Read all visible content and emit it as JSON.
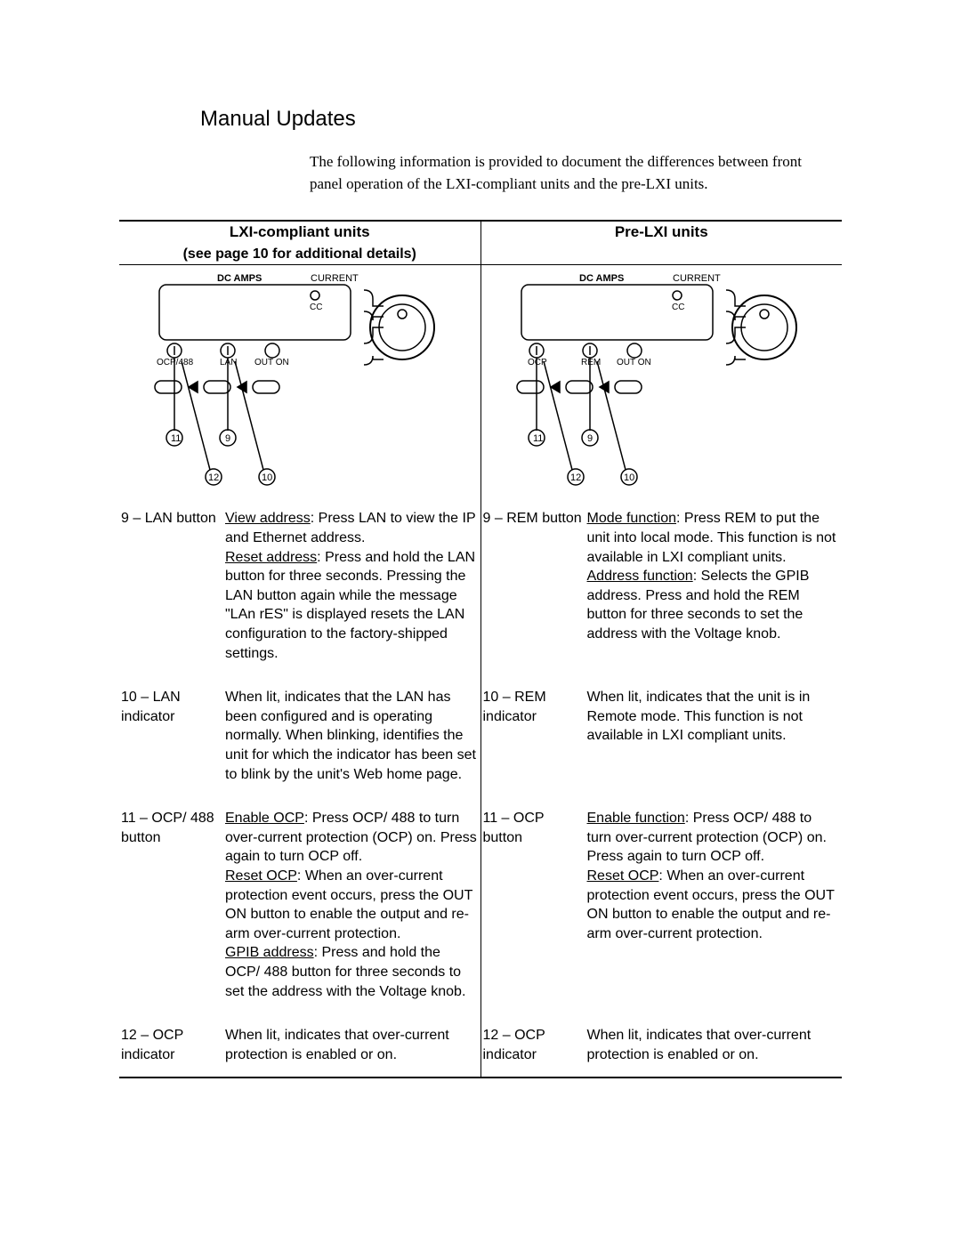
{
  "title": "Manual Updates",
  "intro": "The following information is provided to document the differences between front panel operation of the LXI-compliant units and the pre-LXI units.",
  "columns": {
    "left": {
      "header": "LXI-compliant units",
      "subheader": "(see page 10 for additional details)"
    },
    "right": {
      "header": "Pre-LXI units",
      "subheader": ""
    }
  },
  "diagram": {
    "dc_amps": "DC AMPS",
    "current": "CURRENT",
    "cc": "CC",
    "out_on": "OUT ON",
    "left_labels": {
      "a": "OCP/488",
      "b": "LAN"
    },
    "right_labels": {
      "a": "OCP",
      "b": "REM"
    },
    "callouts": [
      "9",
      "10",
      "11",
      "12"
    ]
  },
  "rows": [
    {
      "left": {
        "label": "9 – LAN button",
        "desc_html": "<span class=\"ul\">View address</span>: Press LAN to view the IP and Ethernet address.<br><span class=\"ul\">Reset address</span>: Press and hold the LAN button for three seconds. Pressing the LAN button again while the message \"LAn rES\" is displayed resets the LAN configuration to the factory-shipped settings."
      },
      "right": {
        "label": "9 – REM button",
        "desc_html": "<span class=\"ul\">Mode function</span>: Press REM to put the unit into local mode. This function is not available in LXI compliant units.<br><span class=\"ul\">Address function</span>: Selects the GPIB address. Press and hold the REM button for three seconds to set the address with the Voltage knob."
      }
    },
    {
      "left": {
        "label": "10 – LAN indicator",
        "desc_html": "When lit, indicates that the LAN has been configured and is operating normally. When blinking, identifies the unit for which the indicator has been set to blink by the unit's Web home page."
      },
      "right": {
        "label": "10 – REM indicator",
        "desc_html": "When lit, indicates that the unit is in Remote mode. This function is not available in LXI compliant units."
      }
    },
    {
      "left": {
        "label": "11 – OCP/ 488 button",
        "desc_html": "<span class=\"ul\">Enable OCP</span>: Press OCP/ 488 to turn over-current protection (OCP) on. Press again to turn OCP off.<br><span class=\"ul\">Reset OCP</span>: When an over-current protection event occurs, press the OUT ON button to enable the output and re-arm over-current protection.<br><span class=\"ul\">GPIB address</span>: Press and hold the OCP/ 488 button for three seconds to set the address with the Voltage knob."
      },
      "right": {
        "label": "11 – OCP button",
        "desc_html": "<span class=\"ul\">Enable function</span>: Press OCP/ 488 to turn over-current protection (OCP) on. Press again to turn OCP off.<br><span class=\"ul\">Reset OCP</span>: When an over-current protection event occurs, press the OUT ON button to enable the output and re-arm over-current protection."
      }
    },
    {
      "left": {
        "label": "12 – OCP indicator",
        "desc_html": "When lit, indicates that over-current protection is enabled or on."
      },
      "right": {
        "label": "12 – OCP indicator",
        "desc_html": "When lit, indicates that over-current protection is enabled or on."
      }
    }
  ],
  "style": {
    "text_color": "#000000",
    "bg_color": "#ffffff",
    "border_color": "#000000",
    "title_fontsize": 24,
    "body_fontsize": 16
  }
}
